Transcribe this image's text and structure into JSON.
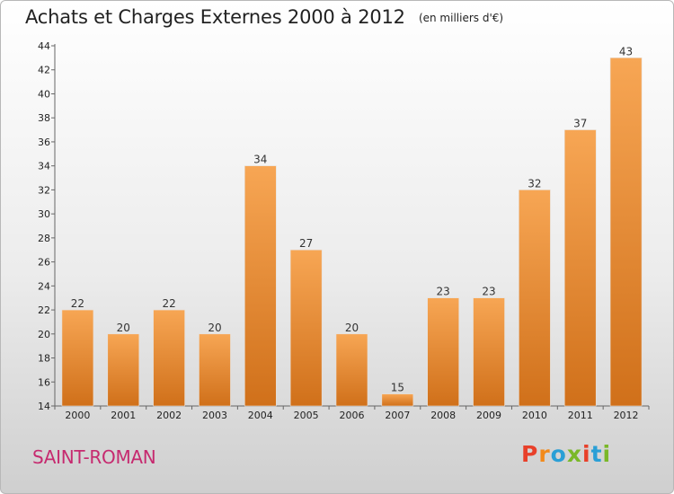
{
  "chart_data": {
    "type": "bar",
    "title": "Achats et Charges Externes 2000 à 2012",
    "unit_note": "(en milliers d'€)",
    "categories": [
      "2000",
      "2001",
      "2002",
      "2003",
      "2004",
      "2005",
      "2006",
      "2007",
      "2008",
      "2009",
      "2010",
      "2011",
      "2012"
    ],
    "values": [
      22,
      20,
      22,
      20,
      34,
      27,
      20,
      15,
      23,
      23,
      32,
      37,
      43
    ],
    "ylim": [
      14,
      44
    ],
    "yticks": [
      14,
      16,
      18,
      20,
      22,
      24,
      26,
      28,
      30,
      32,
      34,
      36,
      38,
      40,
      42,
      44
    ],
    "grid": false,
    "bar_color_top": "#f7a654",
    "bar_color_bottom": "#d0701a"
  },
  "footer": {
    "place": "SAINT-ROMAN",
    "logo_text": "Proxiti",
    "logo_colors": [
      "#e8402a",
      "#f28a1b",
      "#2a9fd6",
      "#7ab828",
      "#e8402a",
      "#2a9fd6",
      "#7ab828"
    ]
  },
  "colors": {
    "place_text": "#c62a6f"
  }
}
